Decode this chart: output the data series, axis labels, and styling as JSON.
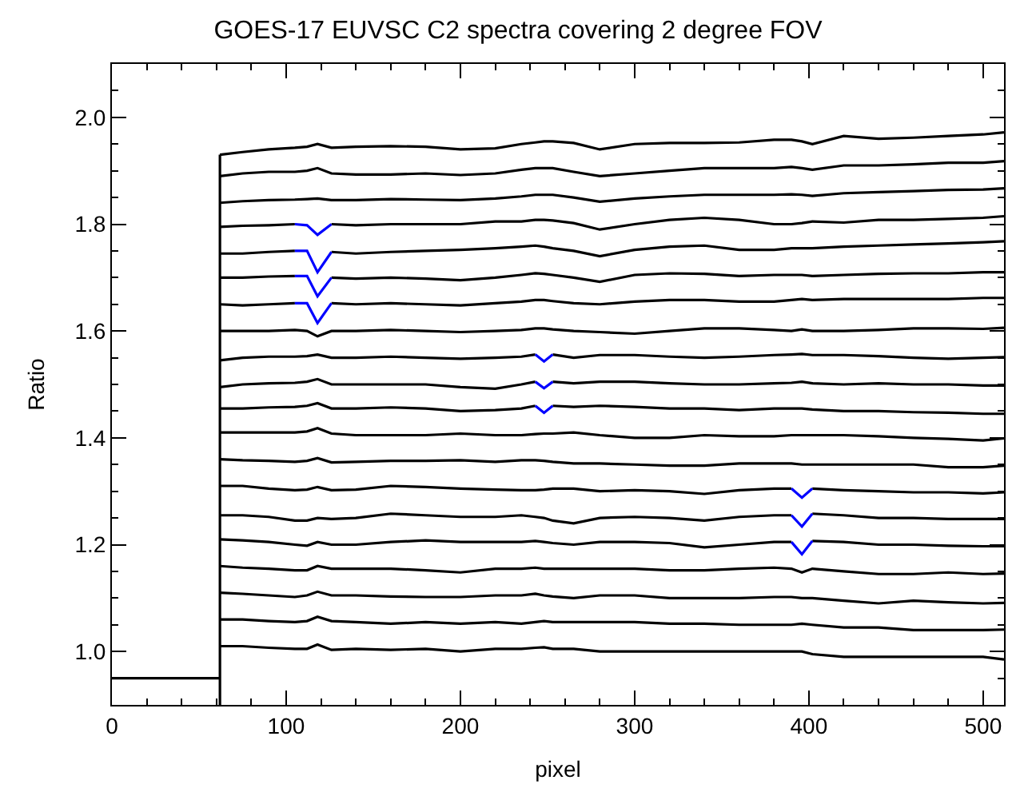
{
  "chart_data": {
    "type": "line",
    "title": "GOES-17 EUVSC C2 spectra covering 2 degree FOV",
    "xlabel": "pixel",
    "ylabel": "Ratio",
    "xlim": [
      0,
      512
    ],
    "ylim": [
      0.9,
      2.1
    ],
    "xticks": [
      0,
      {
        "value": 20,
        "label": null
      },
      {
        "value": 40,
        "label": null
      },
      {
        "value": 60,
        "label": null
      },
      {
        "value": 80,
        "label": null
      },
      100,
      {
        "value": 120,
        "label": null
      },
      {
        "value": 140,
        "label": null
      },
      {
        "value": 160,
        "label": null
      },
      {
        "value": 180,
        "label": null
      },
      200,
      {
        "value": 220,
        "label": null
      },
      {
        "value": 240,
        "label": null
      },
      {
        "value": 260,
        "label": null
      },
      {
        "value": 280,
        "label": null
      },
      300,
      {
        "value": 320,
        "label": null
      },
      {
        "value": 340,
        "label": null
      },
      {
        "value": 360,
        "label": null
      },
      {
        "value": 380,
        "label": null
      },
      400,
      {
        "value": 420,
        "label": null
      },
      {
        "value": 440,
        "label": null
      },
      {
        "value": 460,
        "label": null
      },
      {
        "value": 480,
        "label": null
      },
      500
    ],
    "yticks": [
      {
        "value": 0.95,
        "label": null
      },
      {
        "value": 1.0,
        "label": "1.0"
      },
      {
        "value": 1.05,
        "label": null
      },
      {
        "value": 1.1,
        "label": null
      },
      {
        "value": 1.15,
        "label": null
      },
      1.2,
      {
        "value": 1.25,
        "label": null
      },
      {
        "value": 1.3,
        "label": null
      },
      {
        "value": 1.35,
        "label": null
      },
      1.4,
      {
        "value": 1.45,
        "label": null
      },
      {
        "value": 1.5,
        "label": null
      },
      {
        "value": 1.55,
        "label": null
      },
      1.6,
      {
        "value": 1.65,
        "label": null
      },
      {
        "value": 1.7,
        "label": null
      },
      {
        "value": 1.75,
        "label": null
      },
      1.8,
      {
        "value": 1.85,
        "label": null
      },
      {
        "value": 1.9,
        "label": null
      },
      {
        "value": 1.95,
        "label": null
      },
      {
        "value": 2.0,
        "label": "2.0"
      },
      {
        "value": 2.05,
        "label": null
      }
    ],
    "marker": "none",
    "line_style": "solid",
    "x": [
      62,
      75,
      90,
      105,
      112,
      118,
      126,
      140,
      160,
      180,
      200,
      220,
      235,
      243,
      248,
      253,
      265,
      280,
      300,
      320,
      340,
      360,
      380,
      390,
      396,
      402,
      420,
      440,
      460,
      480,
      500,
      512
    ],
    "series": [
      {
        "color": "#000000",
        "x": [
          0,
          62,
          62,
          62
        ],
        "values": [
          0.95,
          0.95,
          0.9,
          1.93
        ]
      },
      {
        "color": "#000000",
        "values": [
          1.93,
          1.935,
          1.94,
          1.943,
          1.945,
          1.95,
          1.943,
          1.945,
          1.946,
          1.945,
          1.94,
          1.942,
          1.95,
          1.953,
          1.955,
          1.955,
          1.952,
          1.94,
          1.95,
          1.952,
          1.952,
          1.953,
          1.958,
          1.958,
          1.955,
          1.95,
          1.965,
          1.96,
          1.962,
          1.965,
          1.968,
          1.972
        ]
      },
      {
        "color": "#000000",
        "values": [
          1.89,
          1.895,
          1.898,
          1.898,
          1.9,
          1.905,
          1.895,
          1.893,
          1.893,
          1.895,
          1.892,
          1.895,
          1.902,
          1.905,
          1.905,
          1.905,
          1.898,
          1.89,
          1.895,
          1.9,
          1.905,
          1.905,
          1.905,
          1.907,
          1.905,
          1.902,
          1.91,
          1.91,
          1.912,
          1.915,
          1.915,
          1.918
        ]
      },
      {
        "color": "#000000",
        "values": [
          1.84,
          1.843,
          1.845,
          1.846,
          1.847,
          1.848,
          1.845,
          1.845,
          1.847,
          1.846,
          1.845,
          1.848,
          1.852,
          1.855,
          1.855,
          1.855,
          1.85,
          1.842,
          1.848,
          1.852,
          1.855,
          1.855,
          1.855,
          1.856,
          1.855,
          1.853,
          1.858,
          1.86,
          1.862,
          1.864,
          1.865,
          1.867
        ]
      },
      {
        "color": "#000000",
        "values": [
          1.795,
          1.797,
          1.798,
          1.8,
          null,
          null,
          1.8,
          1.798,
          1.8,
          1.8,
          1.8,
          1.805,
          1.805,
          1.808,
          1.808,
          1.807,
          1.802,
          1.79,
          1.8,
          1.808,
          1.812,
          1.808,
          1.8,
          1.8,
          1.802,
          1.805,
          1.803,
          1.808,
          1.808,
          1.81,
          1.812,
          1.815
        ]
      },
      {
        "color": "#000000",
        "values": [
          1.745,
          1.745,
          1.748,
          1.75,
          null,
          null,
          1.748,
          1.745,
          1.748,
          1.75,
          1.752,
          1.755,
          1.758,
          1.76,
          1.758,
          1.755,
          1.75,
          1.74,
          1.752,
          1.758,
          1.76,
          1.752,
          1.752,
          1.755,
          1.755,
          1.755,
          1.758,
          1.76,
          1.762,
          1.764,
          1.766,
          1.768
        ]
      },
      {
        "color": "#000000",
        "values": [
          1.7,
          1.7,
          1.702,
          1.703,
          null,
          null,
          1.7,
          1.698,
          1.7,
          1.698,
          1.695,
          1.7,
          1.705,
          1.708,
          1.707,
          1.705,
          1.7,
          1.692,
          1.705,
          1.708,
          1.707,
          1.703,
          1.705,
          1.705,
          1.705,
          1.703,
          1.705,
          1.707,
          1.708,
          1.708,
          1.71,
          1.71
        ]
      },
      {
        "color": "#000000",
        "values": [
          1.65,
          1.648,
          1.65,
          1.652,
          null,
          null,
          1.652,
          1.65,
          1.652,
          1.65,
          1.648,
          1.652,
          1.655,
          1.658,
          1.658,
          1.656,
          1.652,
          1.65,
          1.655,
          1.658,
          1.658,
          1.655,
          1.655,
          1.658,
          1.66,
          1.658,
          1.66,
          1.66,
          1.66,
          1.66,
          1.662,
          1.662
        ]
      },
      {
        "color": "#000000",
        "values": [
          1.6,
          1.6,
          1.6,
          1.602,
          1.6,
          1.59,
          1.6,
          1.6,
          1.602,
          1.6,
          1.598,
          1.6,
          1.602,
          1.605,
          1.605,
          1.603,
          1.6,
          1.598,
          1.595,
          1.6,
          1.605,
          1.605,
          1.602,
          1.6,
          1.603,
          1.6,
          1.6,
          1.602,
          1.605,
          1.605,
          1.604,
          1.606
        ]
      },
      {
        "color": "#000000",
        "values": [
          1.545,
          1.55,
          1.552,
          1.552,
          1.553,
          1.556,
          1.55,
          1.55,
          1.552,
          1.55,
          1.548,
          1.55,
          1.552,
          1.556,
          null,
          1.556,
          1.55,
          1.555,
          1.555,
          1.552,
          1.55,
          1.552,
          1.555,
          1.556,
          1.557,
          1.555,
          1.555,
          1.553,
          1.55,
          1.548,
          1.55,
          1.551
        ]
      },
      {
        "color": "#000000",
        "values": [
          1.495,
          1.5,
          1.502,
          1.503,
          1.505,
          1.51,
          1.5,
          1.5,
          1.5,
          1.5,
          1.495,
          1.492,
          1.5,
          1.505,
          null,
          1.505,
          1.502,
          1.505,
          1.505,
          1.502,
          1.5,
          1.5,
          1.502,
          1.503,
          1.505,
          1.502,
          1.5,
          1.502,
          1.5,
          1.5,
          1.498,
          1.498
        ]
      },
      {
        "color": "#000000",
        "values": [
          1.455,
          1.455,
          1.457,
          1.458,
          1.46,
          1.465,
          1.455,
          1.455,
          1.457,
          1.455,
          1.45,
          1.452,
          1.455,
          1.46,
          null,
          1.46,
          1.458,
          1.46,
          1.458,
          1.455,
          1.455,
          1.452,
          1.455,
          1.455,
          1.455,
          1.453,
          1.45,
          1.45,
          1.448,
          1.447,
          1.445,
          1.445
        ]
      },
      {
        "color": "#000000",
        "values": [
          1.41,
          1.41,
          1.41,
          1.41,
          1.412,
          1.418,
          1.408,
          1.405,
          1.405,
          1.405,
          1.408,
          1.405,
          1.405,
          1.407,
          1.408,
          1.408,
          1.41,
          1.405,
          1.4,
          1.4,
          1.405,
          1.403,
          1.403,
          1.405,
          1.405,
          1.405,
          1.405,
          1.403,
          1.4,
          1.398,
          1.395,
          1.399
        ]
      },
      {
        "color": "#000000",
        "values": [
          1.36,
          1.358,
          1.357,
          1.355,
          1.357,
          1.362,
          1.354,
          1.355,
          1.357,
          1.357,
          1.358,
          1.355,
          1.358,
          1.358,
          1.357,
          1.355,
          1.352,
          1.352,
          1.35,
          1.348,
          1.348,
          1.352,
          1.352,
          1.352,
          1.35,
          1.35,
          1.35,
          1.35,
          1.35,
          1.345,
          1.345,
          1.348
        ]
      },
      {
        "color": "#000000",
        "values": [
          1.31,
          1.31,
          1.305,
          1.302,
          1.303,
          1.308,
          1.302,
          1.303,
          1.31,
          1.308,
          1.305,
          1.303,
          1.302,
          1.302,
          1.303,
          1.305,
          1.305,
          1.3,
          1.302,
          1.3,
          1.295,
          1.302,
          1.305,
          1.305,
          null,
          1.305,
          1.302,
          1.3,
          1.298,
          1.298,
          1.296,
          1.298
        ]
      },
      {
        "color": "#000000",
        "values": [
          1.255,
          1.255,
          1.252,
          1.245,
          1.245,
          1.25,
          1.248,
          1.25,
          1.258,
          1.255,
          1.252,
          1.252,
          1.255,
          1.252,
          1.25,
          1.245,
          1.24,
          1.25,
          1.252,
          1.25,
          1.245,
          1.252,
          1.255,
          1.255,
          null,
          1.258,
          1.255,
          1.25,
          1.25,
          1.248,
          1.248,
          1.248
        ]
      },
      {
        "color": "#000000",
        "values": [
          1.21,
          1.208,
          1.205,
          1.2,
          1.198,
          1.205,
          1.2,
          1.2,
          1.205,
          1.208,
          1.205,
          1.205,
          1.205,
          1.207,
          1.205,
          1.203,
          1.2,
          1.205,
          1.205,
          1.203,
          1.195,
          1.2,
          1.205,
          1.205,
          null,
          1.207,
          1.205,
          1.2,
          1.2,
          1.198,
          1.197,
          1.197
        ]
      },
      {
        "color": "#000000",
        "values": [
          1.16,
          1.157,
          1.155,
          1.152,
          1.152,
          1.16,
          1.155,
          1.155,
          1.155,
          1.152,
          1.148,
          1.155,
          1.155,
          1.157,
          1.155,
          1.155,
          1.155,
          1.155,
          1.155,
          1.152,
          1.152,
          1.155,
          1.157,
          1.155,
          1.148,
          1.155,
          1.15,
          1.145,
          1.145,
          1.148,
          1.145,
          1.146
        ]
      },
      {
        "color": "#000000",
        "values": [
          1.11,
          1.108,
          1.105,
          1.102,
          1.105,
          1.112,
          1.105,
          1.105,
          1.103,
          1.102,
          1.102,
          1.105,
          1.105,
          1.108,
          1.105,
          1.103,
          1.1,
          1.105,
          1.105,
          1.1,
          1.1,
          1.1,
          1.102,
          1.102,
          1.1,
          1.1,
          1.095,
          1.09,
          1.095,
          1.092,
          1.09,
          1.091
        ]
      },
      {
        "color": "#000000",
        "values": [
          1.06,
          1.06,
          1.057,
          1.055,
          1.057,
          1.065,
          1.057,
          1.055,
          1.052,
          1.055,
          1.052,
          1.055,
          1.052,
          1.055,
          1.057,
          1.055,
          1.055,
          1.055,
          1.055,
          1.052,
          1.052,
          1.05,
          1.05,
          1.05,
          1.052,
          1.05,
          1.045,
          1.045,
          1.04,
          1.04,
          1.04,
          1.041
        ]
      },
      {
        "color": "#000000",
        "values": [
          1.01,
          1.01,
          1.007,
          1.005,
          1.005,
          1.013,
          1.003,
          1.005,
          1.003,
          1.005,
          1.0,
          1.005,
          1.005,
          1.007,
          1.008,
          1.005,
          1.005,
          1.0,
          1.0,
          1.0,
          1.0,
          1.0,
          1.0,
          1.0,
          1.0,
          0.995,
          0.99,
          0.99,
          0.99,
          0.99,
          0.99,
          0.985
        ]
      },
      {
        "color": "#0000ff",
        "x": [
          105,
          112,
          118,
          126
        ],
        "values": [
          1.8,
          1.798,
          1.78,
          1.8
        ]
      },
      {
        "color": "#0000ff",
        "x": [
          105,
          112,
          118,
          126
        ],
        "values": [
          1.75,
          1.75,
          1.71,
          1.748
        ]
      },
      {
        "color": "#0000ff",
        "x": [
          105,
          112,
          118,
          126
        ],
        "values": [
          1.703,
          1.703,
          1.665,
          1.7
        ]
      },
      {
        "color": "#0000ff",
        "x": [
          105,
          112,
          118,
          126
        ],
        "values": [
          1.652,
          1.652,
          1.615,
          1.652
        ]
      },
      {
        "color": "#0000ff",
        "x": [
          243,
          248,
          253
        ],
        "values": [
          1.556,
          1.543,
          1.556
        ]
      },
      {
        "color": "#0000ff",
        "x": [
          243,
          248,
          253
        ],
        "values": [
          1.505,
          1.493,
          1.505
        ]
      },
      {
        "color": "#0000ff",
        "x": [
          243,
          248,
          253
        ],
        "values": [
          1.46,
          1.447,
          1.46
        ]
      },
      {
        "color": "#0000ff",
        "x": [
          390,
          396,
          402
        ],
        "values": [
          1.305,
          1.288,
          1.305
        ]
      },
      {
        "color": "#0000ff",
        "x": [
          390,
          396,
          402
        ],
        "values": [
          1.255,
          1.234,
          1.258
        ]
      },
      {
        "color": "#0000ff",
        "x": [
          390,
          396,
          402
        ],
        "values": [
          1.205,
          1.182,
          1.207
        ]
      }
    ]
  }
}
